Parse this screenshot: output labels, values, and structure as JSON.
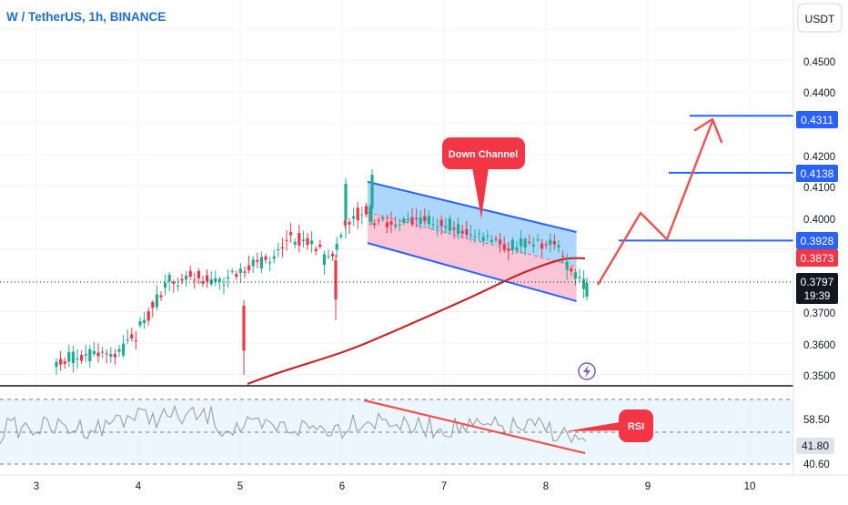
{
  "header": {
    "symbol_title": "W / TetherUS, 1h, BINANCE"
  },
  "currency_badge": "USDT",
  "price_axis": {
    "ticks": [
      "0.4500",
      "0.4400",
      "0.4200",
      "0.4100",
      "0.4000",
      "0.3700",
      "0.3600",
      "0.3500"
    ],
    "badges": {
      "target_high": "0.4311",
      "target_mid": "0.4138",
      "target_low": "0.3928",
      "ma_value": "0.3873",
      "last_price": "0.3797",
      "countdown": "19:39"
    }
  },
  "rsi_axis": {
    "upper": "58.50",
    "current": "41.80",
    "lower": "40.60"
  },
  "time_axis": {
    "labels": [
      "3",
      "4",
      "5",
      "6",
      "7",
      "8",
      "9",
      "10"
    ]
  },
  "annotations": {
    "channel_label": "Down Channel",
    "rsi_label": "RSI"
  },
  "colors": {
    "bull": "#22ab94",
    "bear": "#f23645",
    "ma": "#c62828",
    "channel_line": "#2962ff",
    "channel_fill": "#90caf9",
    "channel_pink": "#f8bbd0",
    "callout": "#f23645",
    "projection": "#ef5350",
    "level_line": "#2962ff",
    "badge_blue": "#2962ff",
    "badge_red": "#f23645",
    "badge_dark": "#131722",
    "rsi_line": "#9e9e9e",
    "rsi_band": "#e3f2fd"
  },
  "chart_data": {
    "type": "candlestick",
    "title": "W / TetherUS, 1h, BINANCE",
    "y_unit": "USDT",
    "ylim": [
      0.3395,
      0.464
    ],
    "x_axis": {
      "labels": [
        "3",
        "4",
        "5",
        "6",
        "7",
        "8",
        "9",
        "10"
      ],
      "range": [
        2.72,
        10.3
      ]
    },
    "last_price": 0.3797,
    "moving_average": {
      "value": 0.3873
    },
    "horizontal_levels": [
      0.4311,
      0.4138,
      0.3928
    ],
    "down_channel": {
      "upper": [
        [
          6.25,
          0.4115
        ],
        [
          8.3,
          0.3955
        ]
      ],
      "lower": [
        [
          6.25,
          0.392
        ],
        [
          8.3,
          0.3735
        ]
      ]
    },
    "projection_path": [
      [
        8.5,
        0.377
      ],
      [
        8.9,
        0.402
      ],
      [
        9.12,
        0.393
      ],
      [
        9.65,
        0.43
      ]
    ],
    "rsi": {
      "levels": [
        58.5,
        41.8,
        40.6
      ],
      "current": 41.8
    }
  }
}
